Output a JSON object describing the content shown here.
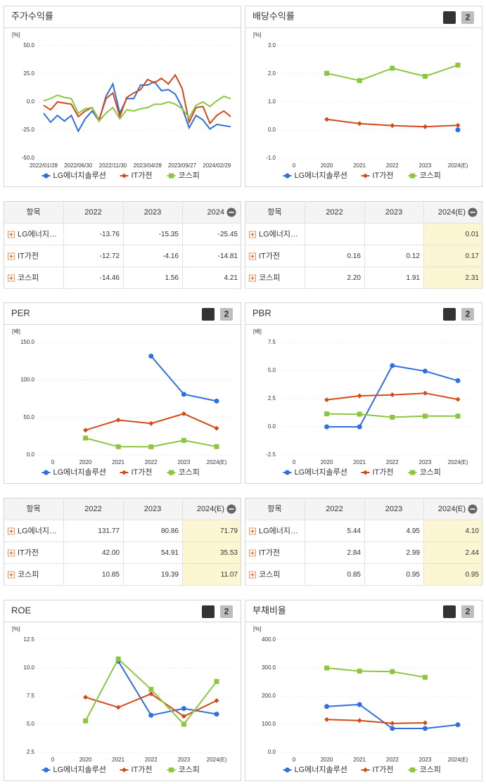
{
  "chart_data": [
    {
      "type": "line",
      "title": "주가수익률",
      "unit": "[%]",
      "markers": false,
      "grid": true,
      "categories": [
        "2022/01/28",
        null,
        null,
        null,
        null,
        "2022/06/30",
        null,
        null,
        null,
        null,
        "2022/11/30",
        null,
        null,
        null,
        null,
        "2023/04/28",
        null,
        null,
        null,
        null,
        "2023/09/27",
        null,
        null,
        null,
        null,
        "2024/02/29",
        null,
        null
      ],
      "ylim": [
        -50,
        50
      ],
      "yticks": [
        {
          "value": -50,
          "label": "-50.0"
        },
        {
          "value": -25,
          "label": "-25.0"
        },
        {
          "value": 0,
          "label": "0.0"
        },
        {
          "value": 25,
          "label": "25.0"
        },
        {
          "value": 50,
          "label": "50.0"
        }
      ],
      "series": [
        {
          "name": "LG에너지솔루션",
          "color": "#2f6fe0",
          "marker": "circle",
          "values": [
            -10,
            -18,
            -12,
            -17,
            -12,
            -26,
            -15,
            -8,
            -17,
            5,
            16,
            -10,
            3,
            3,
            15,
            15,
            18,
            10,
            11,
            7,
            -5,
            -23,
            -12,
            -16,
            -24,
            -20,
            -21,
            -22
          ]
        },
        {
          "name": "IT가전",
          "color": "#d24a1a",
          "marker": "diamond",
          "values": [
            -3,
            -7,
            0,
            -1,
            -2,
            -13,
            -8,
            -5,
            -16,
            3,
            8,
            -13,
            4,
            8,
            11,
            20,
            17,
            21,
            16,
            24,
            12,
            -18,
            -5,
            -4,
            -19,
            -12,
            -8,
            -13
          ]
        },
        {
          "name": "코스피",
          "color": "#8cc63f",
          "marker": "square",
          "values": [
            1,
            3,
            6,
            4,
            3,
            -10,
            -6,
            -5,
            -17,
            -10,
            -5,
            -15,
            -7,
            -8,
            -6,
            -5,
            -2,
            -2,
            0,
            -2,
            -6,
            -14,
            -3,
            0,
            -4,
            1,
            5,
            3
          ]
        }
      ]
    },
    {
      "type": "line",
      "title": "배당수익률",
      "tabs": [
        "1",
        "2"
      ],
      "unit": "[%]",
      "markers": true,
      "grid": true,
      "categories": [
        "0",
        "2020",
        "2021",
        "2022",
        "2023",
        "2024(E)"
      ],
      "ylim": [
        -1,
        3
      ],
      "yticks": [
        {
          "value": -1,
          "label": "-1.0"
        },
        {
          "value": 0,
          "label": "0.0"
        },
        {
          "value": 1,
          "label": "1.0"
        },
        {
          "value": 2,
          "label": "2.0"
        },
        {
          "value": 3,
          "label": "3.0"
        }
      ],
      "series": [
        {
          "name": "LG에너지솔루션",
          "color": "#2f6fe0",
          "marker": "circle",
          "values": [
            null,
            null,
            null,
            null,
            null,
            0.01
          ]
        },
        {
          "name": "IT가전",
          "color": "#d24a1a",
          "marker": "diamond",
          "values": [
            null,
            0.38,
            0.23,
            0.16,
            0.12,
            0.17
          ]
        },
        {
          "name": "코스피",
          "color": "#8cc63f",
          "marker": "square",
          "values": [
            null,
            2.02,
            1.76,
            2.2,
            1.91,
            2.31
          ]
        }
      ]
    },
    {
      "type": "line",
      "title": "PER",
      "tabs": [
        "1",
        "2"
      ],
      "unit": "[배]",
      "markers": true,
      "grid": true,
      "categories": [
        "0",
        "2020",
        "2021",
        "2022",
        "2023",
        "2024(E)"
      ],
      "ylim": [
        0,
        150
      ],
      "yticks": [
        {
          "value": 0,
          "label": "0.0"
        },
        {
          "value": 50,
          "label": "50.0"
        },
        {
          "value": 100,
          "label": "100.0"
        },
        {
          "value": 150,
          "label": "150.0"
        }
      ],
      "series": [
        {
          "name": "LG에너지솔루션",
          "color": "#2f6fe0",
          "marker": "circle",
          "values": [
            null,
            null,
            null,
            131.77,
            80.86,
            71.79
          ]
        },
        {
          "name": "IT가전",
          "color": "#d24a1a",
          "marker": "diamond",
          "values": [
            null,
            33,
            46.5,
            42,
            54.91,
            35.53
          ]
        },
        {
          "name": "코스피",
          "color": "#8cc63f",
          "marker": "square",
          "values": [
            null,
            22.5,
            11,
            10.85,
            19.39,
            11.07
          ]
        }
      ]
    },
    {
      "type": "line",
      "title": "PBR",
      "tabs": [
        "1",
        "2"
      ],
      "unit": "[배]",
      "markers": true,
      "grid": true,
      "categories": [
        "0",
        "2020",
        "2021",
        "2022",
        "2023",
        "2024(E)"
      ],
      "ylim": [
        -2.5,
        7.5
      ],
      "yticks": [
        -2.5,
        {
          "value": 0,
          "label": "0.0"
        },
        2.5,
        {
          "value": 5,
          "label": "5.0"
        },
        7.5
      ],
      "series": [
        {
          "name": "LG에너지솔루션",
          "color": "#2f6fe0",
          "marker": "circle",
          "values": [
            null,
            0,
            0,
            5.44,
            4.95,
            4.1
          ]
        },
        {
          "name": "IT가전",
          "color": "#d24a1a",
          "marker": "diamond",
          "values": [
            null,
            2.4,
            2.75,
            2.84,
            2.99,
            2.44
          ]
        },
        {
          "name": "코스피",
          "color": "#8cc63f",
          "marker": "square",
          "values": [
            null,
            1.15,
            1.12,
            0.85,
            0.95,
            0.95
          ]
        }
      ]
    },
    {
      "type": "line",
      "title": "ROE",
      "tabs": [
        "1",
        "2"
      ],
      "unit": "[%]",
      "markers": true,
      "grid": true,
      "categories": [
        "0",
        "2020",
        "2021",
        "2022",
        "2023",
        "2024(E)"
      ],
      "ylim": [
        2.5,
        12.5
      ],
      "yticks": [
        2.5,
        {
          "value": 5,
          "label": "5.0"
        },
        7.5,
        {
          "value": 10,
          "label": "10.0"
        },
        12.5
      ],
      "series": [
        {
          "name": "LG에너지솔루션",
          "color": "#2f6fe0",
          "marker": "circle",
          "values": [
            null,
            null,
            10.6,
            5.8,
            6.4,
            5.9
          ]
        },
        {
          "name": "IT가전",
          "color": "#d24a1a",
          "marker": "diamond",
          "values": [
            null,
            7.4,
            6.5,
            7.7,
            5.7,
            7.1
          ]
        },
        {
          "name": "코스피",
          "color": "#8cc63f",
          "marker": "square",
          "values": [
            null,
            5.3,
            10.8,
            8.1,
            5.0,
            8.8
          ]
        }
      ]
    },
    {
      "type": "line",
      "title": "부채비율",
      "tabs": [
        "1",
        "2"
      ],
      "unit": "[%]",
      "markers": true,
      "grid": true,
      "categories": [
        "0",
        "2020",
        "2021",
        "2022",
        "2023",
        "2024(E)"
      ],
      "ylim": [
        0,
        400
      ],
      "yticks": [
        {
          "value": 0,
          "label": "0.0"
        },
        {
          "value": 100,
          "label": "100.0"
        },
        {
          "value": 200,
          "label": "200.0"
        },
        {
          "value": 300,
          "label": "300.0"
        },
        {
          "value": 400,
          "label": "400.0"
        }
      ],
      "series": [
        {
          "name": "LG에너지솔루션",
          "color": "#2f6fe0",
          "marker": "circle",
          "values": [
            null,
            163,
            170,
            85,
            85,
            98
          ]
        },
        {
          "name": "IT가전",
          "color": "#d24a1a",
          "marker": "diamond",
          "values": [
            null,
            117,
            113,
            103,
            105,
            null
          ]
        },
        {
          "name": "코스피",
          "color": "#8cc63f",
          "marker": "square",
          "values": [
            null,
            300,
            289,
            287,
            267,
            null
          ]
        }
      ]
    }
  ],
  "tables": [
    {
      "header": [
        "항목",
        "2022",
        "2023",
        "2024"
      ],
      "rows": [
        {
          "name": "LG에너지…",
          "values": [
            "-13.76",
            "-15.35",
            "-25.45"
          ]
        },
        {
          "name": "IT가전",
          "values": [
            "-12.72",
            "-4.16",
            "-14.81"
          ]
        },
        {
          "name": "코스피",
          "values": [
            "-14.46",
            "1.56",
            "4.21"
          ]
        }
      ]
    },
    {
      "header": [
        "항목",
        "2022",
        "2023",
        "2024(E)"
      ],
      "highlight_color": "#fdf6d3",
      "rows": [
        {
          "name": "LG에너지…",
          "values": [
            null,
            null,
            "0.01"
          ]
        },
        {
          "name": "IT가전",
          "values": [
            "0.16",
            "0.12",
            "0.17"
          ]
        },
        {
          "name": "코스피",
          "values": [
            "2.20",
            "1.91",
            "2.31"
          ]
        }
      ]
    },
    {
      "header": [
        "항목",
        "2022",
        "2023",
        "2024(E)"
      ],
      "highlight_color": "#fdf6d3",
      "rows": [
        {
          "name": "LG에너지…",
          "values": [
            "131.77",
            "80.86",
            "71.79"
          ]
        },
        {
          "name": "IT가전",
          "values": [
            "42.00",
            "54.91",
            "35.53"
          ]
        },
        {
          "name": "코스피",
          "values": [
            "10.85",
            "19.39",
            "11.07"
          ]
        }
      ]
    },
    {
      "header": [
        "항목",
        "2022",
        "2023",
        "2024(E)"
      ],
      "highlight_color": "#fdf6d3",
      "rows": [
        {
          "name": "LG에너지…",
          "values": [
            "5.44",
            "4.95",
            "4.10"
          ]
        },
        {
          "name": "IT가전",
          "values": [
            "2.84",
            "2.99",
            "2.44"
          ]
        },
        {
          "name": "코스피",
          "values": [
            "0.85",
            "0.95",
            "0.95"
          ]
        }
      ]
    }
  ]
}
